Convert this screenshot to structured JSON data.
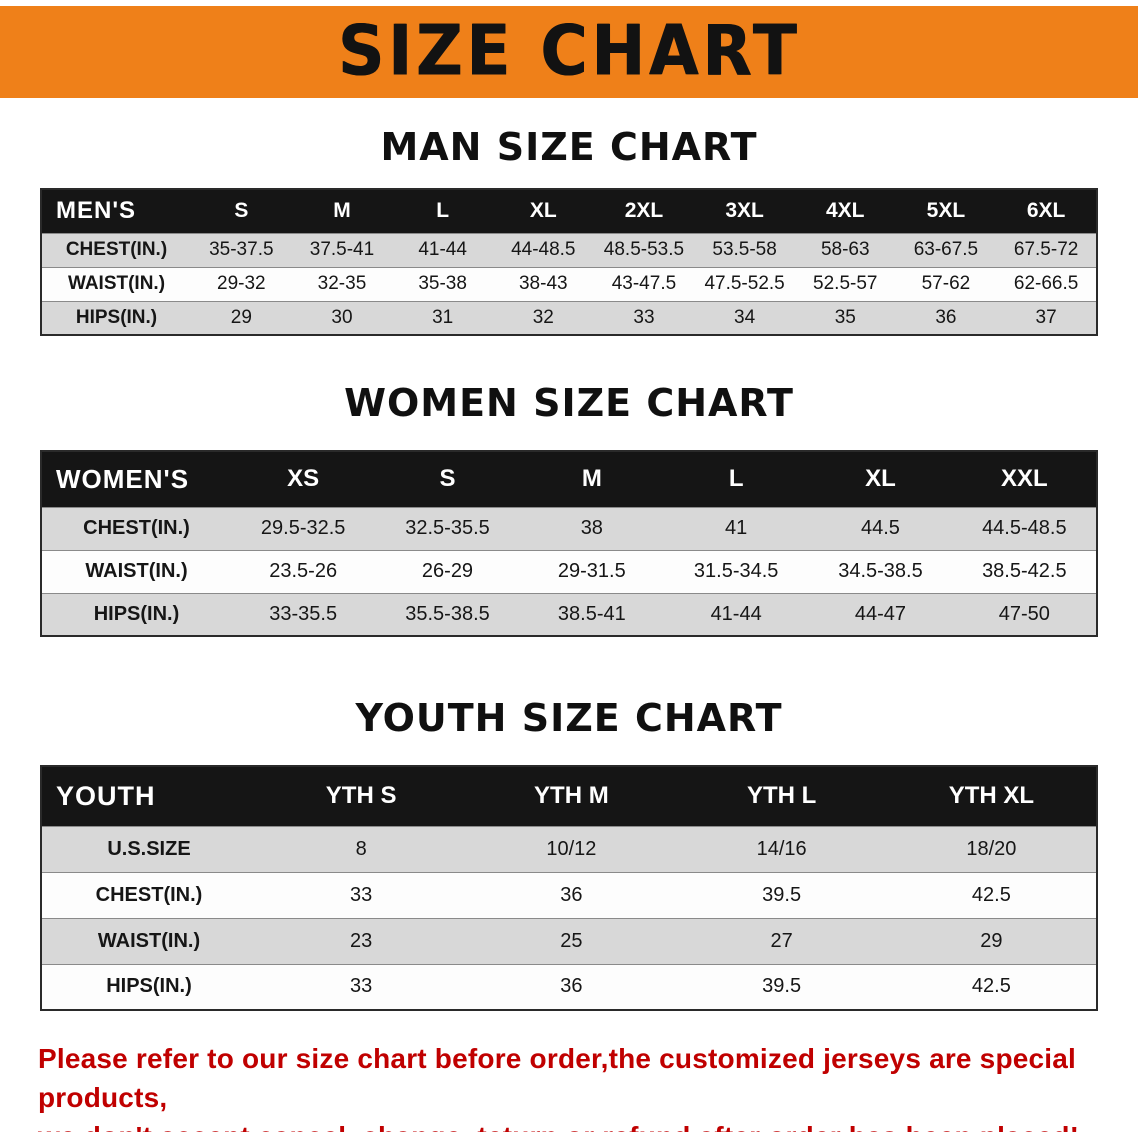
{
  "banner": {
    "title": "SIZE CHART"
  },
  "colors": {
    "banner_bg": "#ef8019",
    "table_header_bg": "#151515",
    "row_stripe": "#d8d8d8",
    "note_red": "#c00000"
  },
  "chart_data": [
    {
      "type": "table",
      "title": "MAN SIZE CHART",
      "corner_label": "MEN'S",
      "columns": [
        "S",
        "M",
        "L",
        "XL",
        "2XL",
        "3XL",
        "4XL",
        "5XL",
        "6XL"
      ],
      "rows": [
        {
          "label": "CHEST(IN.)",
          "values": [
            "35-37.5",
            "37.5-41",
            "41-44",
            "44-48.5",
            "48.5-53.5",
            "53.5-58",
            "58-63",
            "63-67.5",
            "67.5-72"
          ]
        },
        {
          "label": "WAIST(IN.)",
          "values": [
            "29-32",
            "32-35",
            "35-38",
            "38-43",
            "43-47.5",
            "47.5-52.5",
            "52.5-57",
            "57-62",
            "62-66.5"
          ]
        },
        {
          "label": "HIPS(IN.)",
          "values": [
            "29",
            "30",
            "31",
            "32",
            "33",
            "34",
            "35",
            "36",
            "37"
          ]
        }
      ]
    },
    {
      "type": "table",
      "title": "WOMEN SIZE CHART",
      "corner_label": "WOMEN'S",
      "columns": [
        "XS",
        "S",
        "M",
        "L",
        "XL",
        "XXL"
      ],
      "rows": [
        {
          "label": "CHEST(IN.)",
          "values": [
            "29.5-32.5",
            "32.5-35.5",
            "38",
            "41",
            "44.5",
            "44.5-48.5"
          ]
        },
        {
          "label": "WAIST(IN.)",
          "values": [
            "23.5-26",
            "26-29",
            "29-31.5",
            "31.5-34.5",
            "34.5-38.5",
            "38.5-42.5"
          ]
        },
        {
          "label": "HIPS(IN.)",
          "values": [
            "33-35.5",
            "35.5-38.5",
            "38.5-41",
            "41-44",
            "44-47",
            "47-50"
          ]
        }
      ]
    },
    {
      "type": "table",
      "title": "YOUTH SIZE CHART",
      "corner_label": "YOUTH",
      "columns": [
        "YTH S",
        "YTH M",
        "YTH L",
        "YTH XL"
      ],
      "rows": [
        {
          "label": "U.S.SIZE",
          "values": [
            "8",
            "10/12",
            "14/16",
            "18/20"
          ]
        },
        {
          "label": "CHEST(IN.)",
          "values": [
            "33",
            "36",
            "39.5",
            "42.5"
          ]
        },
        {
          "label": "WAIST(IN.)",
          "values": [
            "23",
            "25",
            "27",
            "29"
          ]
        },
        {
          "label": "HIPS(IN.)",
          "values": [
            "33",
            "36",
            "39.5",
            "42.5"
          ]
        }
      ]
    }
  ],
  "note": {
    "line1": "Please refer to our size chart before order,the customized jerseys are special products,",
    "line2": "we don't accept cancel, change, teturn or refund after order has been placed!"
  }
}
